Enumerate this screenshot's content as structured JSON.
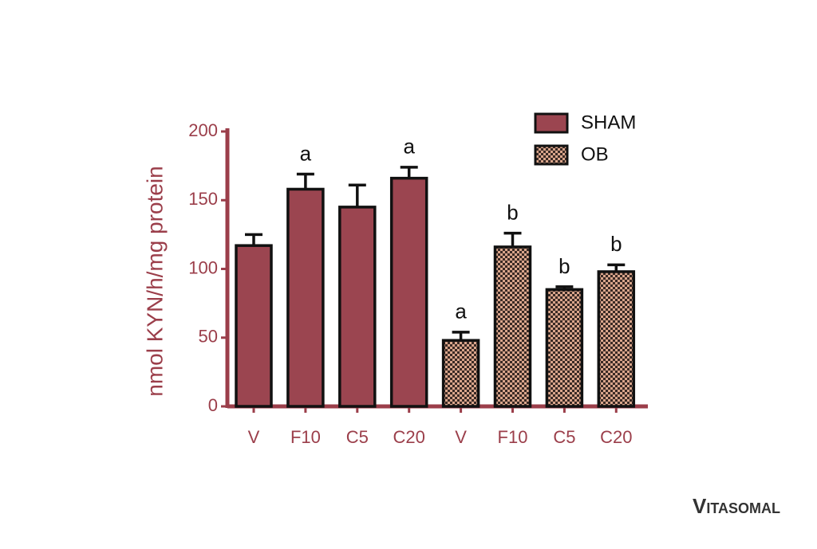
{
  "chart_data": {
    "type": "bar",
    "ylabel": "nmol KYN/h/mg protein",
    "categories": [
      "V",
      "F10",
      "C5",
      "C20",
      "V",
      "F10",
      "C5",
      "C20"
    ],
    "series": [
      {
        "name": "SHAM",
        "color": "#9b4550",
        "pattern": false,
        "values": [
          117,
          158,
          145,
          166,
          null,
          null,
          null,
          null
        ],
        "errors": [
          8,
          11,
          16,
          8,
          null,
          null,
          null,
          null
        ]
      },
      {
        "name": "OB",
        "color": "#d9a58b",
        "pattern": true,
        "values": [
          null,
          null,
          null,
          null,
          48,
          116,
          85,
          98
        ],
        "errors": [
          null,
          null,
          null,
          null,
          6,
          10,
          2,
          5
        ]
      }
    ],
    "annotations": [
      null,
      "a",
      null,
      "a",
      "a",
      "b",
      "b",
      "b"
    ],
    "ylim": [
      0,
      200
    ],
    "yticks": [
      0,
      50,
      100,
      150,
      200
    ],
    "legend": "upper right"
  },
  "watermark": "Vitasomal"
}
